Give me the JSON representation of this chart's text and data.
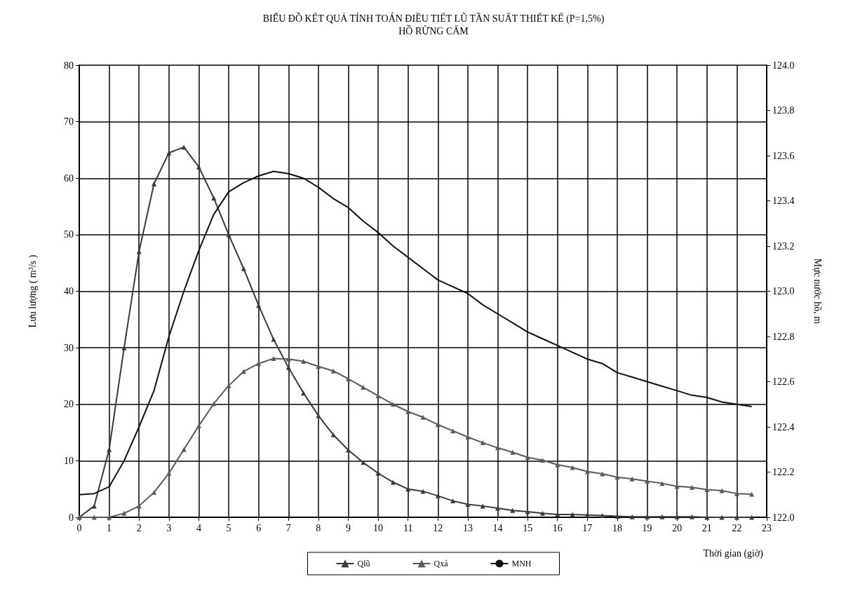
{
  "chart_data": {
    "type": "line",
    "title": "BIỂU ĐỒ KẾT QUẢ TÍNH TOÁN ĐIỀU TIẾT LŨ TẦN SUẤT THIẾT KẾ (P=1,5%)",
    "subtitle": "HỒ RỪNG CẤM",
    "xlabel": "Thời gian (giờ)",
    "ylabel": "Lưu lượng ( m³/s )",
    "y2label": "Mực nước hồ, m",
    "x": [
      0,
      0.5,
      1,
      1.5,
      2,
      2.5,
      3,
      3.5,
      4,
      4.5,
      5,
      5.5,
      6,
      6.5,
      7,
      7.5,
      8,
      8.5,
      9,
      9.5,
      10,
      10.5,
      11,
      11.5,
      12,
      12.5,
      13,
      13.5,
      14,
      14.5,
      15,
      15.5,
      16,
      16.5,
      17,
      17.5,
      18,
      18.5,
      19,
      19.5,
      20,
      20.5,
      21,
      21.5,
      22,
      22.5
    ],
    "series": [
      {
        "name": "Qlũ",
        "color": "#3a3a3a",
        "marker": "triangle",
        "values": [
          0,
          2,
          12,
          30,
          47,
          59,
          64.5,
          65.5,
          62,
          56.5,
          50,
          44,
          37.5,
          31.5,
          26.5,
          22,
          18,
          14.6,
          11.9,
          9.7,
          7.8,
          6.2,
          5,
          4.6,
          3.8,
          2.9,
          2.3,
          2,
          1.6,
          1.2,
          1,
          0.7,
          0.5,
          0.5,
          0.4,
          0.3,
          0.2,
          0.1,
          0.1,
          0.1,
          0.1,
          0.1,
          0,
          0,
          0,
          0
        ]
      },
      {
        "name": "Qxả",
        "color": "#5a5a5a",
        "marker": "triangle",
        "values": [
          0,
          0,
          0,
          0.7,
          2,
          4.4,
          7.8,
          12,
          16.2,
          20.1,
          23.3,
          25.8,
          27.2,
          28.1,
          28,
          27.6,
          26.7,
          25.9,
          24.5,
          23,
          21.5,
          20,
          18.7,
          17.7,
          16.4,
          15.3,
          14.2,
          13.2,
          12.3,
          11.5,
          10.6,
          10.1,
          9.3,
          8.8,
          8.1,
          7.7,
          7.1,
          6.8,
          6.4,
          6,
          5.5,
          5.3,
          4.9,
          4.7,
          4.2,
          4.1
        ]
      },
      {
        "name": "MNH",
        "color": "#111111",
        "marker": "none",
        "axis": "y2",
        "values": [
          122.1,
          122.105,
          122.135,
          122.25,
          122.4,
          122.56,
          122.8,
          123,
          123.18,
          123.34,
          123.44,
          123.48,
          123.51,
          123.53,
          123.52,
          123.5,
          123.46,
          123.41,
          123.37,
          123.31,
          123.26,
          123.2,
          123.15,
          123.1,
          123.05,
          123.02,
          122.99,
          122.94,
          122.9,
          122.86,
          122.82,
          122.79,
          122.76,
          122.73,
          122.7,
          122.68,
          122.64,
          122.62,
          122.6,
          122.58,
          122.56,
          122.54,
          122.53,
          122.51,
          122.5,
          122.49
        ]
      }
    ],
    "xlim": [
      0,
      23
    ],
    "xticks": [
      0,
      1,
      2,
      3,
      4,
      5,
      6,
      7,
      8,
      9,
      10,
      11,
      12,
      13,
      14,
      15,
      16,
      17,
      18,
      19,
      20,
      21,
      22,
      23
    ],
    "ylim": [
      0,
      80
    ],
    "yticks": [
      0,
      10,
      20,
      30,
      40,
      50,
      60,
      70,
      80
    ],
    "y2lim": [
      122,
      124
    ],
    "y2ticks": [
      {
        "value": 122,
        "label": "122.0"
      },
      122.2,
      122.4,
      122.6,
      122.8,
      {
        "value": 123,
        "label": "123.0"
      },
      123.2,
      123.4,
      123.6,
      123.8,
      {
        "value": 124,
        "label": "124.0"
      }
    ],
    "grid": true,
    "legend": "bottom",
    "line_style": "solid"
  }
}
